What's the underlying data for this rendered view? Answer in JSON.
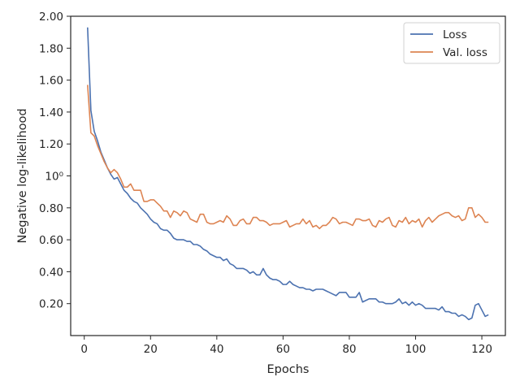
{
  "chart_data": {
    "type": "line",
    "title": "",
    "xlabel": "Epochs",
    "ylabel": "Negative log-likelihood",
    "xlim": [
      -4.1,
      127.1
    ],
    "ylim": [
      0.0,
      2.0
    ],
    "xticks": [
      {
        "value": 0,
        "label": "0"
      },
      {
        "value": 20,
        "label": "20"
      },
      {
        "value": 40,
        "label": "40"
      },
      {
        "value": 60,
        "label": "60"
      },
      {
        "value": 80,
        "label": "80"
      },
      {
        "value": 100,
        "label": "100"
      },
      {
        "value": 120,
        "label": "120"
      }
    ],
    "yticks": [
      {
        "value": 0.2,
        "label": "0.20"
      },
      {
        "value": 0.4,
        "label": "0.40"
      },
      {
        "value": 0.6,
        "label": "0.60"
      },
      {
        "value": 0.8,
        "label": "0.80"
      },
      {
        "value": 1.0,
        "label": "10⁰"
      },
      {
        "value": 1.2,
        "label": "1.20"
      },
      {
        "value": 1.4,
        "label": "1.40"
      },
      {
        "value": 1.6,
        "label": "1.60"
      },
      {
        "value": 1.8,
        "label": "1.80"
      },
      {
        "value": 2.0,
        "label": "2.00"
      }
    ],
    "grid": false,
    "legend": "top-right",
    "series": [
      {
        "name": "Loss",
        "color": "#4c72b0",
        "values": [
          1.93,
          1.41,
          1.28,
          1.22,
          1.15,
          1.1,
          1.05,
          1.01,
          0.98,
          0.99,
          0.95,
          0.91,
          0.89,
          0.86,
          0.84,
          0.83,
          0.8,
          0.78,
          0.76,
          0.73,
          0.71,
          0.7,
          0.67,
          0.66,
          0.66,
          0.64,
          0.61,
          0.6,
          0.6,
          0.6,
          0.59,
          0.59,
          0.57,
          0.57,
          0.56,
          0.54,
          0.53,
          0.51,
          0.5,
          0.49,
          0.49,
          0.47,
          0.48,
          0.45,
          0.44,
          0.42,
          0.42,
          0.42,
          0.41,
          0.39,
          0.4,
          0.38,
          0.38,
          0.42,
          0.38,
          0.36,
          0.35,
          0.35,
          0.34,
          0.32,
          0.32,
          0.34,
          0.32,
          0.31,
          0.3,
          0.3,
          0.29,
          0.29,
          0.28,
          0.29,
          0.29,
          0.29,
          0.28,
          0.27,
          0.26,
          0.25,
          0.27,
          0.27,
          0.27,
          0.24,
          0.24,
          0.24,
          0.27,
          0.21,
          0.22,
          0.23,
          0.23,
          0.23,
          0.21,
          0.21,
          0.2,
          0.2,
          0.2,
          0.21,
          0.23,
          0.2,
          0.21,
          0.19,
          0.21,
          0.19,
          0.2,
          0.19,
          0.17,
          0.17,
          0.17,
          0.17,
          0.16,
          0.18,
          0.15,
          0.15,
          0.14,
          0.14,
          0.12,
          0.13,
          0.12,
          0.1,
          0.11,
          0.19,
          0.2,
          0.16,
          0.12,
          0.13
        ]
      },
      {
        "name": "Val. loss",
        "color": "#dd8452",
        "values": [
          1.57,
          1.27,
          1.25,
          1.19,
          1.14,
          1.09,
          1.05,
          1.02,
          1.04,
          1.02,
          0.98,
          0.93,
          0.93,
          0.95,
          0.91,
          0.91,
          0.91,
          0.84,
          0.84,
          0.85,
          0.85,
          0.83,
          0.81,
          0.78,
          0.78,
          0.74,
          0.78,
          0.77,
          0.75,
          0.78,
          0.77,
          0.73,
          0.72,
          0.71,
          0.76,
          0.76,
          0.71,
          0.7,
          0.7,
          0.71,
          0.72,
          0.71,
          0.75,
          0.73,
          0.69,
          0.69,
          0.72,
          0.73,
          0.7,
          0.7,
          0.74,
          0.74,
          0.72,
          0.72,
          0.71,
          0.69,
          0.7,
          0.7,
          0.7,
          0.71,
          0.72,
          0.68,
          0.69,
          0.7,
          0.7,
          0.73,
          0.7,
          0.72,
          0.68,
          0.69,
          0.67,
          0.69,
          0.69,
          0.71,
          0.74,
          0.73,
          0.7,
          0.71,
          0.71,
          0.7,
          0.69,
          0.73,
          0.73,
          0.72,
          0.72,
          0.73,
          0.69,
          0.68,
          0.72,
          0.71,
          0.73,
          0.74,
          0.69,
          0.68,
          0.72,
          0.71,
          0.74,
          0.7,
          0.72,
          0.71,
          0.73,
          0.68,
          0.72,
          0.74,
          0.71,
          0.73,
          0.75,
          0.76,
          0.77,
          0.77,
          0.75,
          0.74,
          0.75,
          0.72,
          0.73,
          0.8,
          0.8,
          0.74,
          0.76,
          0.74,
          0.71,
          0.71
        ]
      }
    ]
  }
}
